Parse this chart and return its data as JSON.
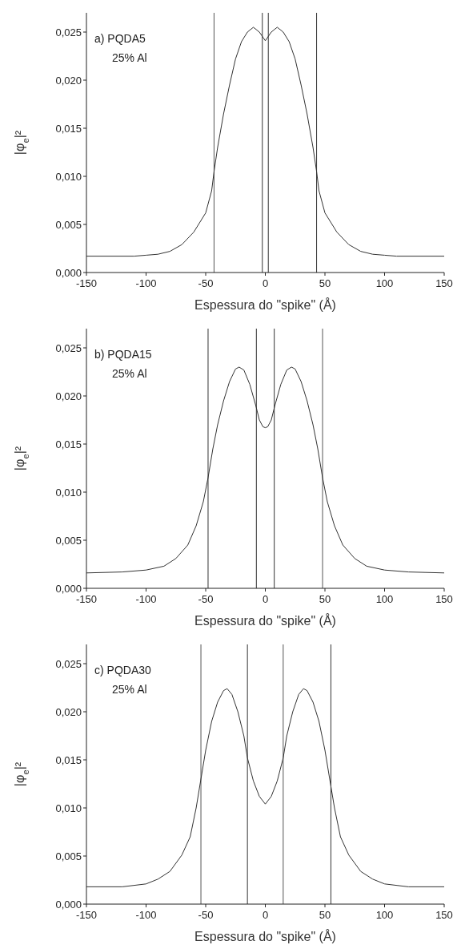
{
  "chart_data": [
    {
      "type": "line",
      "xlabel": "Espessura do \"spike\" (Å)",
      "ylabel": "|φ$_{e}$|²",
      "annotations": [
        "a) PQDA5",
        "25% Al"
      ],
      "xlim": [
        -150,
        150
      ],
      "xticks": [
        -150,
        -100,
        -50,
        0,
        50,
        100,
        150
      ],
      "ylim": [
        0,
        0.027
      ],
      "yticks": [
        {
          "value": 0,
          "label": "0,000"
        },
        {
          "value": 0.005,
          "label": "0,005"
        },
        {
          "value": 0.01,
          "label": "0,010"
        },
        {
          "value": 0.015,
          "label": "0,015"
        },
        {
          "value": 0.02,
          "label": "0,020"
        },
        {
          "value": 0.025,
          "label": "0,025"
        }
      ],
      "marker": "none",
      "line_style": "solid",
      "ref_lines": [
        {
          "axis": "x",
          "value": -43,
          "color": "#555555"
        },
        {
          "axis": "x",
          "value": -2.5,
          "color": "#333333"
        },
        {
          "axis": "x",
          "value": 2.5,
          "color": "#333333"
        },
        {
          "axis": "x",
          "value": 43,
          "color": "#333333"
        }
      ],
      "series": [
        {
          "color": "#333333",
          "x": [
            -150,
            -110,
            -100,
            -90,
            -80,
            -70,
            -60,
            -50,
            -45,
            -43,
            -40,
            -35,
            -30,
            -25,
            -20,
            -15,
            -10,
            -5,
            0,
            5,
            10,
            15,
            20,
            25,
            30,
            35,
            40,
            43,
            45,
            50,
            60,
            70,
            80,
            90,
            100,
            110,
            150
          ],
          "values": [
            0.0017,
            0.0017,
            0.0018,
            0.0019,
            0.0022,
            0.0029,
            0.0042,
            0.0062,
            0.0085,
            0.0105,
            0.013,
            0.0165,
            0.0195,
            0.0222,
            0.024,
            0.025,
            0.0255,
            0.025,
            0.0241,
            0.025,
            0.0255,
            0.025,
            0.024,
            0.0222,
            0.0195,
            0.0165,
            0.013,
            0.0105,
            0.0085,
            0.0062,
            0.0042,
            0.0029,
            0.0022,
            0.0019,
            0.0018,
            0.0017,
            0.0017
          ]
        }
      ]
    },
    {
      "type": "line",
      "xlabel": "Espessura do \"spike\" (Å)",
      "ylabel": "|φ$_{e}$|²",
      "annotations": [
        "b) PQDA15",
        "25% Al"
      ],
      "xlim": [
        -150,
        150
      ],
      "xticks": [
        -150,
        -100,
        -50,
        0,
        50,
        100,
        150
      ],
      "ylim": [
        0,
        0.027
      ],
      "yticks": [
        {
          "value": 0,
          "label": "0,000"
        },
        {
          "value": 0.005,
          "label": "0,005"
        },
        {
          "value": 0.01,
          "label": "0,010"
        },
        {
          "value": 0.015,
          "label": "0,015"
        },
        {
          "value": 0.02,
          "label": "0,020"
        },
        {
          "value": 0.025,
          "label": "0,025"
        }
      ],
      "marker": "none",
      "line_style": "solid",
      "ref_lines": [
        {
          "axis": "x",
          "value": -48,
          "color": "#333333"
        },
        {
          "axis": "x",
          "value": -7.5,
          "color": "#333333"
        },
        {
          "axis": "x",
          "value": 7.5,
          "color": "#333333"
        },
        {
          "axis": "x",
          "value": 48,
          "color": "#555555"
        }
      ],
      "series": [
        {
          "color": "#333333",
          "x": [
            -150,
            -120,
            -100,
            -85,
            -75,
            -65,
            -58,
            -52,
            -48,
            -44,
            -40,
            -35,
            -30,
            -25,
            -22,
            -18,
            -13,
            -8,
            -5,
            -2,
            0,
            2,
            5,
            8,
            13,
            18,
            22,
            25,
            30,
            35,
            40,
            44,
            48,
            52,
            58,
            65,
            75,
            85,
            100,
            120,
            150
          ],
          "values": [
            0.0016,
            0.0017,
            0.0019,
            0.0023,
            0.0031,
            0.0045,
            0.0065,
            0.009,
            0.0115,
            0.0145,
            0.017,
            0.0195,
            0.0215,
            0.0228,
            0.023,
            0.0227,
            0.0212,
            0.019,
            0.0175,
            0.0168,
            0.0167,
            0.0168,
            0.0175,
            0.019,
            0.0212,
            0.0227,
            0.023,
            0.0228,
            0.0215,
            0.0195,
            0.017,
            0.0145,
            0.0115,
            0.009,
            0.0065,
            0.0045,
            0.0031,
            0.0023,
            0.0019,
            0.0017,
            0.0016
          ]
        }
      ]
    },
    {
      "type": "line",
      "xlabel": "Espessura do \"spike\" (Å)",
      "ylabel": "|φ$_{e}$|²",
      "annotations": [
        "c) PQDA30",
        "25% Al"
      ],
      "xlim": [
        -150,
        150
      ],
      "xticks": [
        -150,
        -100,
        -50,
        0,
        50,
        100,
        150
      ],
      "ylim": [
        0,
        0.027
      ],
      "yticks": [
        {
          "value": 0,
          "label": "0,000"
        },
        {
          "value": 0.005,
          "label": "0,005"
        },
        {
          "value": 0.01,
          "label": "0,010"
        },
        {
          "value": 0.015,
          "label": "0,015"
        },
        {
          "value": 0.02,
          "label": "0,020"
        },
        {
          "value": 0.025,
          "label": "0,025"
        }
      ],
      "marker": "none",
      "line_style": "solid",
      "ref_lines": [
        {
          "axis": "x",
          "value": -54,
          "color": "#555555"
        },
        {
          "axis": "x",
          "value": -15,
          "color": "#333333"
        },
        {
          "axis": "x",
          "value": 15,
          "color": "#555555"
        },
        {
          "axis": "x",
          "value": 55,
          "color": "#333333"
        }
      ],
      "series": [
        {
          "color": "#333333",
          "x": [
            -150,
            -120,
            -100,
            -90,
            -80,
            -70,
            -63,
            -58,
            -54,
            -50,
            -45,
            -40,
            -35,
            -32,
            -28,
            -23,
            -18,
            -15,
            -10,
            -5,
            0,
            5,
            10,
            15,
            18,
            23,
            28,
            32,
            35,
            40,
            45,
            50,
            54,
            58,
            63,
            70,
            80,
            90,
            100,
            120,
            150
          ],
          "values": [
            0.0018,
            0.0018,
            0.0021,
            0.0026,
            0.0034,
            0.0051,
            0.007,
            0.01,
            0.013,
            0.016,
            0.019,
            0.021,
            0.0222,
            0.0224,
            0.0218,
            0.02,
            0.0175,
            0.0152,
            0.0128,
            0.0112,
            0.0104,
            0.0112,
            0.0128,
            0.0152,
            0.0175,
            0.02,
            0.0218,
            0.0224,
            0.0222,
            0.021,
            0.019,
            0.016,
            0.013,
            0.01,
            0.007,
            0.0051,
            0.0034,
            0.0026,
            0.0021,
            0.0018,
            0.0018
          ]
        }
      ]
    }
  ]
}
